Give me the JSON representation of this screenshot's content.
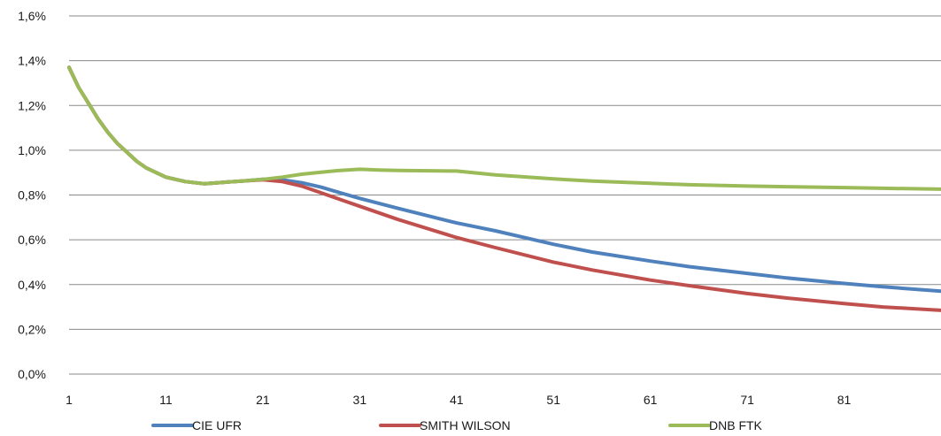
{
  "chart_data": {
    "type": "line",
    "title": "",
    "xlabel": "",
    "ylabel": "",
    "grid": true,
    "legend_position": "bottom",
    "xlim": [
      1,
      91
    ],
    "ylim": [
      0,
      1.6
    ],
    "x_ticks": [
      1,
      11,
      21,
      31,
      41,
      51,
      61,
      71,
      81
    ],
    "y_ticks": [
      {
        "value": 0.0,
        "label": "0,0%"
      },
      {
        "value": 0.2,
        "label": "0,2%"
      },
      {
        "value": 0.4,
        "label": "0,4%"
      },
      {
        "value": 0.6,
        "label": "0,6%"
      },
      {
        "value": 0.8,
        "label": "0,8%"
      },
      {
        "value": 1.0,
        "label": "1,0%"
      },
      {
        "value": 1.2,
        "label": "1,2%"
      },
      {
        "value": 1.4,
        "label": "1,4%"
      },
      {
        "value": 1.6,
        "label": "1,6%"
      }
    ],
    "series": [
      {
        "name": "CIE UFR",
        "color": "#4f81bd",
        "x": [
          1,
          2,
          3,
          4,
          5,
          6,
          7,
          8,
          9,
          10,
          11,
          13,
          15,
          17,
          19,
          21,
          23,
          25,
          27,
          29,
          31,
          35,
          41,
          45,
          51,
          55,
          61,
          65,
          71,
          75,
          81,
          85,
          91
        ],
        "y": [
          1.37,
          1.28,
          1.21,
          1.14,
          1.08,
          1.03,
          0.99,
          0.95,
          0.92,
          0.9,
          0.88,
          0.86,
          0.85,
          0.857,
          0.863,
          0.87,
          0.868,
          0.855,
          0.835,
          0.81,
          0.785,
          0.74,
          0.675,
          0.64,
          0.58,
          0.545,
          0.505,
          0.48,
          0.45,
          0.43,
          0.405,
          0.39,
          0.37
        ]
      },
      {
        "name": "SMITH WILSON",
        "color": "#c0504d",
        "x": [
          1,
          2,
          3,
          4,
          5,
          6,
          7,
          8,
          9,
          10,
          11,
          13,
          15,
          17,
          19,
          21,
          23,
          25,
          27,
          29,
          31,
          35,
          41,
          45,
          51,
          55,
          61,
          65,
          71,
          75,
          81,
          85,
          91
        ],
        "y": [
          1.37,
          1.28,
          1.21,
          1.14,
          1.08,
          1.03,
          0.99,
          0.95,
          0.92,
          0.9,
          0.88,
          0.86,
          0.85,
          0.857,
          0.863,
          0.868,
          0.86,
          0.84,
          0.81,
          0.78,
          0.75,
          0.69,
          0.61,
          0.565,
          0.5,
          0.465,
          0.42,
          0.395,
          0.36,
          0.34,
          0.315,
          0.3,
          0.285
        ]
      },
      {
        "name": "DNB FTK",
        "color": "#9bbb59",
        "x": [
          1,
          2,
          3,
          4,
          5,
          6,
          7,
          8,
          9,
          10,
          11,
          13,
          15,
          17,
          19,
          21,
          23,
          25,
          27,
          29,
          31,
          33,
          35,
          41,
          45,
          51,
          55,
          61,
          65,
          71,
          75,
          81,
          85,
          91
        ],
        "y": [
          1.37,
          1.28,
          1.21,
          1.14,
          1.08,
          1.03,
          0.99,
          0.95,
          0.92,
          0.9,
          0.88,
          0.86,
          0.85,
          0.857,
          0.863,
          0.87,
          0.88,
          0.893,
          0.902,
          0.91,
          0.915,
          0.912,
          0.91,
          0.907,
          0.89,
          0.872,
          0.862,
          0.852,
          0.846,
          0.84,
          0.837,
          0.833,
          0.83,
          0.826
        ]
      }
    ]
  }
}
